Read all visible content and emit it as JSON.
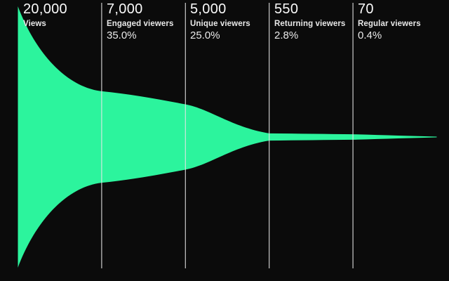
{
  "chart_data": {
    "type": "area",
    "subtype": "smooth-horizontal-funnel",
    "title": "",
    "background_color": "#0b0b0b",
    "funnel_color": "#2cf49d",
    "divider_color": "#e6e6e6",
    "text_color": "#ffffff",
    "max_value": 20000,
    "legend": "none",
    "grid": "vertical-stage-dividers-only",
    "stages": [
      {
        "value": 20000,
        "value_label": "20,000",
        "name": "Views",
        "percent": ""
      },
      {
        "value": 7000,
        "value_label": "7,000",
        "name": "Engaged viewers",
        "percent": "35.0%"
      },
      {
        "value": 5000,
        "value_label": "5,000",
        "name": "Unique viewers",
        "percent": "25.0%"
      },
      {
        "value": 550,
        "value_label": "550",
        "name": "Returning viewers",
        "percent": "2.8%"
      },
      {
        "value": 70,
        "value_label": "70",
        "name": "Regular viewers",
        "percent": "0.4%"
      }
    ]
  }
}
